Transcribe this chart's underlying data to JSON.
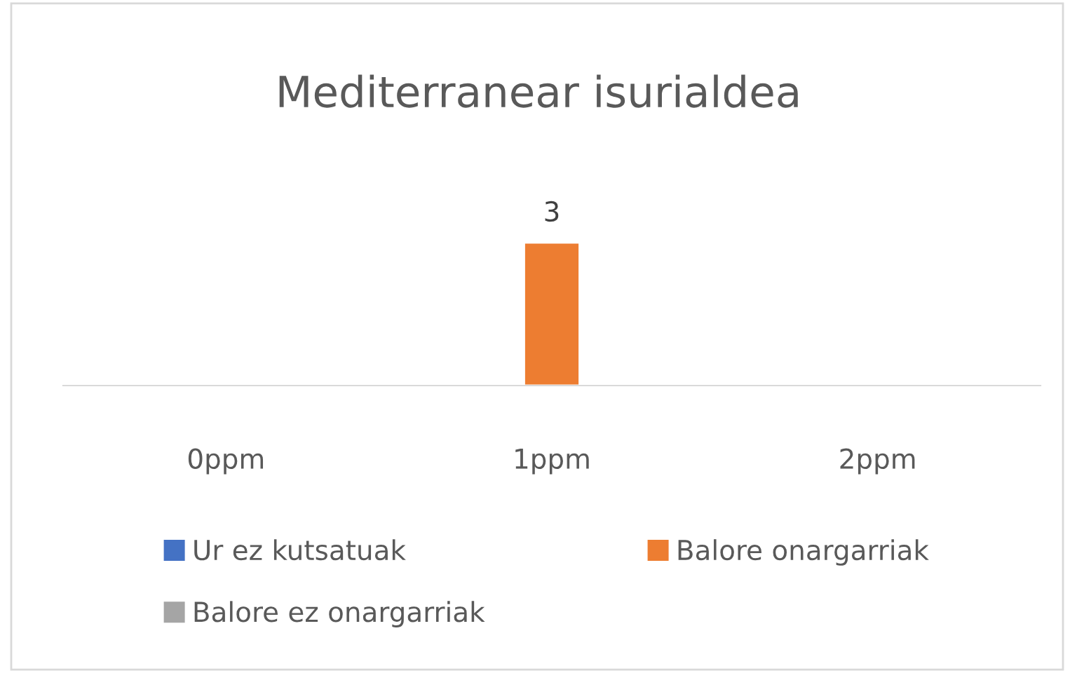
{
  "chart_data": {
    "type": "bar",
    "title": "Mediterranear isurialdea",
    "categories": [
      "0ppm",
      "1ppm",
      "2ppm"
    ],
    "series": [
      {
        "name": "Ur ez kutsatuak",
        "color": "#4472c4",
        "values": [
          null,
          null,
          null
        ]
      },
      {
        "name": "Balore onargarriak",
        "color": "#ed7d31",
        "values": [
          null,
          3,
          null
        ],
        "value_labels": [
          null,
          "3",
          null
        ]
      },
      {
        "name": "Balore ez onargarriak",
        "color": "#a5a5a5",
        "values": [
          null,
          null,
          null
        ]
      }
    ],
    "legend": "bottom",
    "grid": false
  }
}
